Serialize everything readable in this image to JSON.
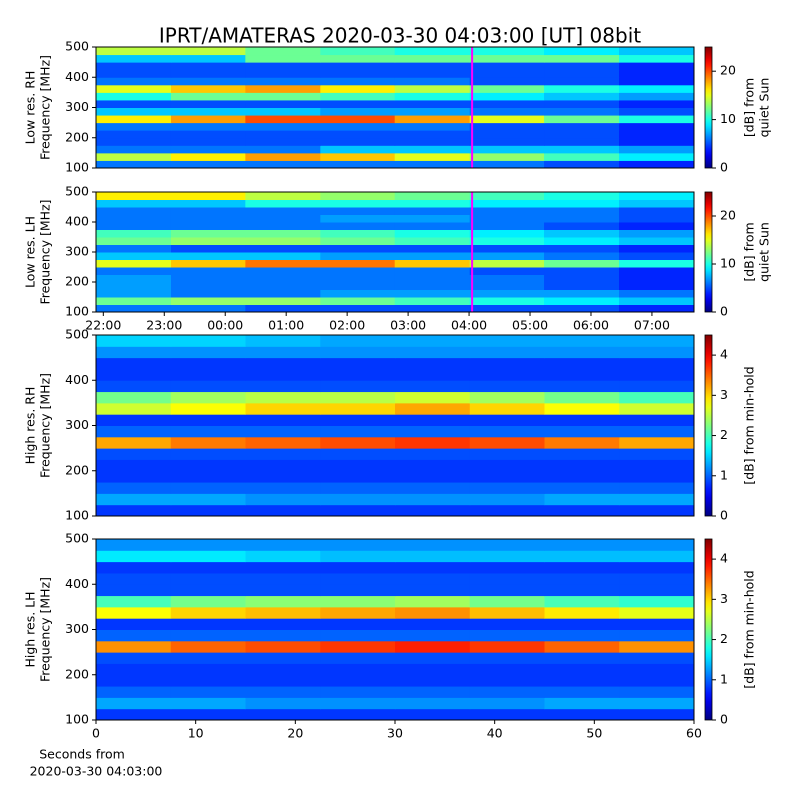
{
  "title": "IPRT/AMATERAS 2020-03-30 04:03:00 [UT]   08bit",
  "chart_data": [
    {
      "type": "spectrogram",
      "ylabel": [
        "Low res. RH",
        "Frequency [MHz]"
      ],
      "xlim": [
        21.88,
        31.69
      ],
      "ylim": [
        100,
        500
      ],
      "yticks": [
        100,
        200,
        300,
        400,
        500
      ],
      "xbins": [
        21.88,
        23.11,
        24.33,
        25.56,
        26.78,
        28.01,
        29.23,
        30.46,
        31.69
      ],
      "ybins": [
        100,
        125,
        150,
        175,
        200,
        225,
        250,
        275,
        300,
        325,
        350,
        375,
        400,
        425,
        450,
        475,
        500
      ],
      "z": [
        [
          6,
          6,
          6,
          6,
          6,
          6,
          5,
          4
        ],
        [
          14,
          16,
          18,
          17,
          15,
          13,
          11,
          9
        ],
        [
          6,
          6,
          6,
          8,
          8,
          8,
          8,
          7
        ],
        [
          5,
          5,
          5,
          5,
          5,
          5,
          5,
          4
        ],
        [
          5,
          5,
          5,
          5,
          5,
          5,
          5,
          4
        ],
        [
          6,
          6,
          6,
          6,
          6,
          5,
          5,
          4
        ],
        [
          16,
          18,
          20,
          20,
          18,
          15,
          12,
          10
        ],
        [
          8,
          8,
          8,
          7,
          7,
          6,
          6,
          5
        ],
        [
          5,
          5,
          5,
          5,
          5,
          5,
          5,
          4
        ],
        [
          10,
          12,
          12,
          11,
          10,
          9,
          8,
          7
        ],
        [
          15,
          17,
          18,
          16,
          14,
          12,
          10,
          9
        ],
        [
          6,
          6,
          6,
          6,
          6,
          5,
          5,
          4
        ],
        [
          5,
          5,
          5,
          5,
          5,
          5,
          5,
          4
        ],
        [
          5,
          5,
          5,
          5,
          5,
          5,
          5,
          4
        ],
        [
          8,
          8,
          12,
          12,
          12,
          12,
          12,
          10
        ],
        [
          14,
          14,
          12,
          11,
          10,
          10,
          9,
          8
        ]
      ],
      "colormap": "jet",
      "clim": [
        0,
        25
      ],
      "colorbar_ticks": [
        0,
        10,
        20
      ],
      "colorbar_label": [
        "[dB] from",
        "quiet Sun"
      ],
      "marker_x": 28.05,
      "marker_color": "#ff00ff"
    },
    {
      "type": "spectrogram",
      "ylabel": [
        "Low res. LH",
        "Frequency [MHz]"
      ],
      "xlim": [
        21.88,
        31.69
      ],
      "ylim": [
        100,
        500
      ],
      "yticks": [
        100,
        200,
        300,
        400,
        500
      ],
      "xticks": [
        {
          "value": 22,
          "label": "22:00"
        },
        {
          "value": 23,
          "label": "23:00"
        },
        {
          "value": 24,
          "label": "00:00"
        },
        {
          "value": 25,
          "label": "01:00"
        },
        {
          "value": 26,
          "label": "02:00"
        },
        {
          "value": 27,
          "label": "03:00"
        },
        {
          "value": 28,
          "label": "04:00"
        },
        {
          "value": 29,
          "label": "05:00"
        },
        {
          "value": 30,
          "label": "06:00"
        },
        {
          "value": 31,
          "label": "07:00"
        }
      ],
      "xbins": [
        21.88,
        23.11,
        24.33,
        25.56,
        26.78,
        28.01,
        29.23,
        30.46,
        31.69
      ],
      "ybins": [
        100,
        125,
        150,
        175,
        200,
        225,
        250,
        275,
        300,
        325,
        350,
        375,
        400,
        425,
        450,
        475,
        500
      ],
      "z": [
        [
          6,
          6,
          5,
          5,
          5,
          5,
          5,
          4
        ],
        [
          12,
          13,
          13,
          12,
          11,
          10,
          9,
          8
        ],
        [
          7,
          6,
          6,
          7,
          7,
          7,
          7,
          6
        ],
        [
          7,
          6,
          6,
          6,
          6,
          6,
          5,
          4
        ],
        [
          7,
          6,
          6,
          6,
          6,
          6,
          5,
          4
        ],
        [
          6,
          6,
          6,
          6,
          6,
          5,
          5,
          4
        ],
        [
          15,
          17,
          19,
          19,
          17,
          14,
          12,
          10
        ],
        [
          8,
          8,
          8,
          7,
          7,
          7,
          6,
          5
        ],
        [
          6,
          5,
          5,
          5,
          5,
          5,
          5,
          4
        ],
        [
          12,
          13,
          13,
          12,
          11,
          10,
          9,
          8
        ],
        [
          11,
          12,
          12,
          11,
          10,
          9,
          8,
          7
        ],
        [
          6,
          6,
          6,
          6,
          6,
          6,
          5,
          4
        ],
        [
          6,
          6,
          6,
          7,
          7,
          6,
          6,
          5
        ],
        [
          6,
          6,
          6,
          6,
          6,
          6,
          6,
          5
        ],
        [
          8,
          8,
          10,
          10,
          10,
          9,
          9,
          8
        ],
        [
          16,
          16,
          14,
          13,
          12,
          11,
          10,
          9
        ]
      ],
      "colormap": "jet",
      "clim": [
        0,
        25
      ],
      "colorbar_ticks": [
        0,
        10,
        20
      ],
      "colorbar_label": [
        "[dB] from",
        "quiet Sun"
      ],
      "marker_x": 28.05,
      "marker_color": "#ff00ff"
    },
    {
      "type": "spectrogram",
      "ylabel": [
        "High res. RH",
        "Frequency [MHz]"
      ],
      "xlim": [
        0,
        60
      ],
      "ylim": [
        100,
        500
      ],
      "yticks": [
        100,
        200,
        300,
        400,
        500
      ],
      "xbins": [
        0,
        7.5,
        15,
        22.5,
        30,
        37.5,
        45,
        52.5,
        60
      ],
      "ybins": [
        100,
        125,
        150,
        175,
        200,
        225,
        250,
        275,
        300,
        325,
        350,
        375,
        400,
        425,
        450,
        475,
        500
      ],
      "z": [
        [
          0.8,
          0.8,
          0.8,
          0.8,
          0.8,
          0.8,
          0.8,
          0.8
        ],
        [
          1.3,
          1.3,
          1.2,
          1.2,
          1.2,
          1.2,
          1.3,
          1.3
        ],
        [
          1.0,
          1.0,
          1.0,
          1.0,
          1.0,
          1.0,
          1.0,
          1.0
        ],
        [
          0.8,
          0.8,
          0.8,
          0.8,
          0.8,
          0.8,
          0.8,
          0.8
        ],
        [
          0.8,
          0.8,
          0.8,
          0.8,
          0.8,
          0.8,
          0.8,
          0.8
        ],
        [
          0.9,
          0.9,
          0.9,
          0.9,
          0.9,
          0.9,
          0.9,
          0.9
        ],
        [
          3.2,
          3.4,
          3.5,
          3.6,
          3.7,
          3.6,
          3.4,
          3.2
        ],
        [
          1.0,
          1.0,
          1.0,
          1.0,
          1.0,
          1.0,
          1.0,
          1.0
        ],
        [
          0.8,
          0.8,
          0.8,
          0.8,
          0.8,
          0.8,
          0.8,
          0.8
        ],
        [
          2.6,
          2.8,
          3.0,
          3.0,
          3.2,
          3.0,
          2.8,
          2.6
        ],
        [
          2.2,
          2.4,
          2.5,
          2.5,
          2.6,
          2.4,
          2.2,
          2.0
        ],
        [
          0.9,
          0.9,
          0.9,
          0.9,
          0.9,
          0.9,
          0.9,
          0.9
        ],
        [
          0.8,
          0.8,
          0.8,
          0.8,
          0.8,
          0.8,
          0.8,
          0.8
        ],
        [
          0.8,
          0.8,
          0.8,
          0.8,
          0.8,
          0.8,
          0.8,
          0.8
        ],
        [
          1.2,
          1.2,
          1.2,
          1.2,
          1.2,
          1.2,
          1.2,
          1.2
        ],
        [
          1.5,
          1.5,
          1.4,
          1.3,
          1.3,
          1.3,
          1.3,
          1.3
        ]
      ],
      "colormap": "jet",
      "clim": [
        0,
        4.5
      ],
      "colorbar_ticks": [
        0,
        1,
        2,
        3,
        4
      ],
      "colorbar_label": [
        "[dB] from min-hold"
      ]
    },
    {
      "type": "spectrogram",
      "ylabel": [
        "High res. LH",
        "Frequency [MHz]"
      ],
      "xlim": [
        0,
        60
      ],
      "ylim": [
        100,
        500
      ],
      "yticks": [
        100,
        200,
        300,
        400,
        500
      ],
      "xticks": [
        0,
        10,
        20,
        30,
        40,
        50,
        60
      ],
      "xlabel": [
        "Seconds from",
        "2020-03-30 04:03:00"
      ],
      "xbins": [
        0,
        7.5,
        15,
        22.5,
        30,
        37.5,
        45,
        52.5,
        60
      ],
      "ybins": [
        100,
        125,
        150,
        175,
        200,
        225,
        250,
        275,
        300,
        325,
        350,
        375,
        400,
        425,
        450,
        475,
        500
      ],
      "z": [
        [
          0.8,
          0.8,
          0.8,
          0.8,
          0.8,
          0.8,
          0.8,
          0.8
        ],
        [
          1.3,
          1.3,
          1.2,
          1.2,
          1.2,
          1.2,
          1.3,
          1.3
        ],
        [
          1.0,
          1.0,
          1.0,
          1.0,
          1.0,
          1.0,
          1.0,
          1.0
        ],
        [
          0.8,
          0.8,
          0.8,
          0.8,
          0.8,
          0.8,
          0.8,
          0.8
        ],
        [
          0.8,
          0.8,
          0.8,
          0.8,
          0.8,
          0.8,
          0.8,
          0.8
        ],
        [
          0.9,
          0.9,
          0.9,
          0.9,
          0.9,
          0.9,
          0.9,
          0.9
        ],
        [
          3.3,
          3.5,
          3.6,
          3.7,
          3.8,
          3.7,
          3.5,
          3.3
        ],
        [
          1.0,
          1.0,
          1.0,
          1.0,
          1.0,
          1.0,
          1.0,
          1.0
        ],
        [
          0.8,
          0.8,
          0.8,
          0.8,
          0.8,
          0.8,
          0.8,
          0.8
        ],
        [
          2.8,
          3.0,
          3.1,
          3.2,
          3.3,
          3.1,
          2.9,
          2.7
        ],
        [
          2.0,
          2.2,
          2.3,
          2.3,
          2.4,
          2.2,
          2.0,
          1.9
        ],
        [
          0.9,
          0.9,
          0.9,
          0.9,
          0.9,
          0.9,
          0.9,
          0.9
        ],
        [
          0.9,
          0.9,
          0.9,
          0.9,
          0.9,
          0.9,
          0.9,
          0.9
        ],
        [
          0.8,
          0.8,
          0.8,
          0.8,
          0.8,
          0.8,
          0.8,
          0.8
        ],
        [
          1.6,
          1.6,
          1.5,
          1.4,
          1.4,
          1.4,
          1.4,
          1.4
        ],
        [
          1.2,
          1.2,
          1.2,
          1.2,
          1.2,
          1.2,
          1.2,
          1.2
        ]
      ],
      "colormap": "jet",
      "clim": [
        0,
        4.5
      ],
      "colorbar_ticks": [
        0,
        1,
        2,
        3,
        4
      ],
      "colorbar_label": [
        "[dB] from min-hold"
      ]
    }
  ]
}
